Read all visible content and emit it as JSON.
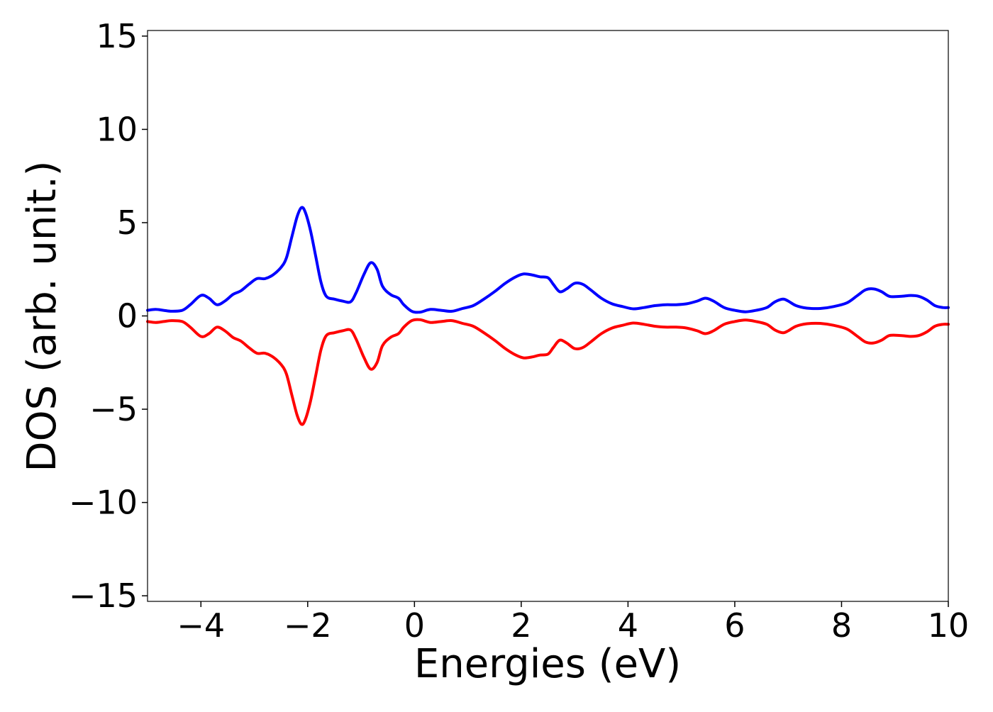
{
  "chart_data": {
    "type": "line",
    "title": "",
    "xlabel": "Energies (eV)",
    "ylabel": "DOS (arb. unit.)",
    "xlim": [
      -5,
      10
    ],
    "ylim": [
      -15.3,
      15.3
    ],
    "grid": false,
    "legend": "none",
    "x_ticks": [
      {
        "value": -4,
        "label": "−4"
      },
      {
        "value": -2,
        "label": "−2"
      },
      {
        "value": 0,
        "label": "0"
      },
      {
        "value": 2,
        "label": "2"
      },
      {
        "value": 4,
        "label": "4"
      },
      {
        "value": 6,
        "label": "6"
      },
      {
        "value": 8,
        "label": "8"
      },
      {
        "value": 10,
        "label": "10"
      }
    ],
    "y_ticks": [
      {
        "value": 15,
        "label": "15"
      },
      {
        "value": 10,
        "label": "10"
      },
      {
        "value": 5,
        "label": "5"
      },
      {
        "value": 0,
        "label": "0"
      },
      {
        "value": -5,
        "label": "−5"
      },
      {
        "value": -10,
        "label": "−10"
      },
      {
        "value": -15,
        "label": "−15"
      }
    ],
    "series": [
      {
        "color": "#0000ff",
        "points": [
          [
            -5.0,
            0.3
          ],
          [
            -4.85,
            0.35
          ],
          [
            -4.7,
            0.3
          ],
          [
            -4.55,
            0.25
          ],
          [
            -4.35,
            0.3
          ],
          [
            -4.2,
            0.6
          ],
          [
            -4.0,
            1.1
          ],
          [
            -3.85,
            0.95
          ],
          [
            -3.7,
            0.6
          ],
          [
            -3.55,
            0.8
          ],
          [
            -3.4,
            1.15
          ],
          [
            -3.25,
            1.35
          ],
          [
            -3.1,
            1.7
          ],
          [
            -2.95,
            2.0
          ],
          [
            -2.8,
            2.0
          ],
          [
            -2.65,
            2.2
          ],
          [
            -2.5,
            2.6
          ],
          [
            -2.4,
            3.1
          ],
          [
            -2.3,
            4.2
          ],
          [
            -2.2,
            5.3
          ],
          [
            -2.12,
            5.8
          ],
          [
            -2.05,
            5.6
          ],
          [
            -1.95,
            4.6
          ],
          [
            -1.85,
            3.2
          ],
          [
            -1.75,
            1.8
          ],
          [
            -1.65,
            1.05
          ],
          [
            -1.5,
            0.9
          ],
          [
            -1.35,
            0.8
          ],
          [
            -1.2,
            0.75
          ],
          [
            -1.1,
            1.2
          ],
          [
            -0.95,
            2.2
          ],
          [
            -0.82,
            2.85
          ],
          [
            -0.7,
            2.5
          ],
          [
            -0.6,
            1.6
          ],
          [
            -0.45,
            1.15
          ],
          [
            -0.3,
            0.95
          ],
          [
            -0.2,
            0.6
          ],
          [
            -0.05,
            0.25
          ],
          [
            0.1,
            0.2
          ],
          [
            0.3,
            0.35
          ],
          [
            0.5,
            0.3
          ],
          [
            0.7,
            0.25
          ],
          [
            0.9,
            0.4
          ],
          [
            1.1,
            0.55
          ],
          [
            1.3,
            0.9
          ],
          [
            1.5,
            1.3
          ],
          [
            1.7,
            1.75
          ],
          [
            1.9,
            2.1
          ],
          [
            2.05,
            2.25
          ],
          [
            2.2,
            2.2
          ],
          [
            2.35,
            2.1
          ],
          [
            2.5,
            2.05
          ],
          [
            2.6,
            1.7
          ],
          [
            2.72,
            1.3
          ],
          [
            2.85,
            1.45
          ],
          [
            3.0,
            1.75
          ],
          [
            3.15,
            1.7
          ],
          [
            3.3,
            1.4
          ],
          [
            3.5,
            0.95
          ],
          [
            3.7,
            0.65
          ],
          [
            3.9,
            0.5
          ],
          [
            4.1,
            0.38
          ],
          [
            4.3,
            0.45
          ],
          [
            4.5,
            0.55
          ],
          [
            4.7,
            0.6
          ],
          [
            4.9,
            0.6
          ],
          [
            5.1,
            0.65
          ],
          [
            5.3,
            0.8
          ],
          [
            5.45,
            0.95
          ],
          [
            5.6,
            0.8
          ],
          [
            5.8,
            0.45
          ],
          [
            6.0,
            0.3
          ],
          [
            6.2,
            0.22
          ],
          [
            6.4,
            0.3
          ],
          [
            6.6,
            0.45
          ],
          [
            6.75,
            0.75
          ],
          [
            6.9,
            0.9
          ],
          [
            7.0,
            0.8
          ],
          [
            7.15,
            0.55
          ],
          [
            7.35,
            0.42
          ],
          [
            7.6,
            0.4
          ],
          [
            7.85,
            0.5
          ],
          [
            8.1,
            0.7
          ],
          [
            8.3,
            1.1
          ],
          [
            8.45,
            1.4
          ],
          [
            8.6,
            1.45
          ],
          [
            8.75,
            1.3
          ],
          [
            8.9,
            1.05
          ],
          [
            9.1,
            1.05
          ],
          [
            9.3,
            1.1
          ],
          [
            9.45,
            1.05
          ],
          [
            9.6,
            0.85
          ],
          [
            9.75,
            0.55
          ],
          [
            9.9,
            0.45
          ],
          [
            10.0,
            0.45
          ]
        ]
      },
      {
        "color": "#ff0000",
        "points": [
          [
            -5.0,
            -0.3
          ],
          [
            -4.85,
            -0.35
          ],
          [
            -4.7,
            -0.3
          ],
          [
            -4.55,
            -0.25
          ],
          [
            -4.35,
            -0.3
          ],
          [
            -4.2,
            -0.6
          ],
          [
            -4.0,
            -1.1
          ],
          [
            -3.85,
            -0.95
          ],
          [
            -3.7,
            -0.6
          ],
          [
            -3.55,
            -0.8
          ],
          [
            -3.4,
            -1.15
          ],
          [
            -3.25,
            -1.35
          ],
          [
            -3.1,
            -1.7
          ],
          [
            -2.95,
            -2.0
          ],
          [
            -2.8,
            -2.0
          ],
          [
            -2.65,
            -2.2
          ],
          [
            -2.5,
            -2.6
          ],
          [
            -2.4,
            -3.1
          ],
          [
            -2.3,
            -4.2
          ],
          [
            -2.2,
            -5.3
          ],
          [
            -2.12,
            -5.8
          ],
          [
            -2.05,
            -5.6
          ],
          [
            -1.95,
            -4.6
          ],
          [
            -1.85,
            -3.2
          ],
          [
            -1.75,
            -1.8
          ],
          [
            -1.65,
            -1.05
          ],
          [
            -1.5,
            -0.9
          ],
          [
            -1.35,
            -0.8
          ],
          [
            -1.2,
            -0.75
          ],
          [
            -1.1,
            -1.2
          ],
          [
            -0.95,
            -2.2
          ],
          [
            -0.82,
            -2.85
          ],
          [
            -0.7,
            -2.5
          ],
          [
            -0.6,
            -1.6
          ],
          [
            -0.45,
            -1.15
          ],
          [
            -0.3,
            -0.95
          ],
          [
            -0.2,
            -0.6
          ],
          [
            -0.05,
            -0.25
          ],
          [
            0.1,
            -0.2
          ],
          [
            0.3,
            -0.35
          ],
          [
            0.5,
            -0.3
          ],
          [
            0.7,
            -0.25
          ],
          [
            0.9,
            -0.4
          ],
          [
            1.1,
            -0.55
          ],
          [
            1.3,
            -0.9
          ],
          [
            1.5,
            -1.3
          ],
          [
            1.7,
            -1.75
          ],
          [
            1.9,
            -2.1
          ],
          [
            2.05,
            -2.25
          ],
          [
            2.2,
            -2.2
          ],
          [
            2.35,
            -2.1
          ],
          [
            2.5,
            -2.05
          ],
          [
            2.6,
            -1.7
          ],
          [
            2.72,
            -1.3
          ],
          [
            2.85,
            -1.45
          ],
          [
            3.0,
            -1.75
          ],
          [
            3.15,
            -1.7
          ],
          [
            3.3,
            -1.4
          ],
          [
            3.5,
            -0.95
          ],
          [
            3.7,
            -0.65
          ],
          [
            3.9,
            -0.5
          ],
          [
            4.1,
            -0.38
          ],
          [
            4.3,
            -0.45
          ],
          [
            4.5,
            -0.55
          ],
          [
            4.7,
            -0.6
          ],
          [
            4.9,
            -0.6
          ],
          [
            5.1,
            -0.65
          ],
          [
            5.3,
            -0.8
          ],
          [
            5.45,
            -0.95
          ],
          [
            5.6,
            -0.8
          ],
          [
            5.8,
            -0.45
          ],
          [
            6.0,
            -0.3
          ],
          [
            6.2,
            -0.22
          ],
          [
            6.4,
            -0.3
          ],
          [
            6.6,
            -0.45
          ],
          [
            6.75,
            -0.75
          ],
          [
            6.9,
            -0.9
          ],
          [
            7.0,
            -0.8
          ],
          [
            7.15,
            -0.55
          ],
          [
            7.35,
            -0.42
          ],
          [
            7.6,
            -0.4
          ],
          [
            7.85,
            -0.5
          ],
          [
            8.1,
            -0.7
          ],
          [
            8.3,
            -1.1
          ],
          [
            8.45,
            -1.4
          ],
          [
            8.6,
            -1.45
          ],
          [
            8.75,
            -1.3
          ],
          [
            8.9,
            -1.05
          ],
          [
            9.1,
            -1.05
          ],
          [
            9.3,
            -1.1
          ],
          [
            9.45,
            -1.05
          ],
          [
            9.6,
            -0.85
          ],
          [
            9.75,
            -0.55
          ],
          [
            9.9,
            -0.45
          ],
          [
            10.0,
            -0.45
          ]
        ]
      }
    ]
  }
}
